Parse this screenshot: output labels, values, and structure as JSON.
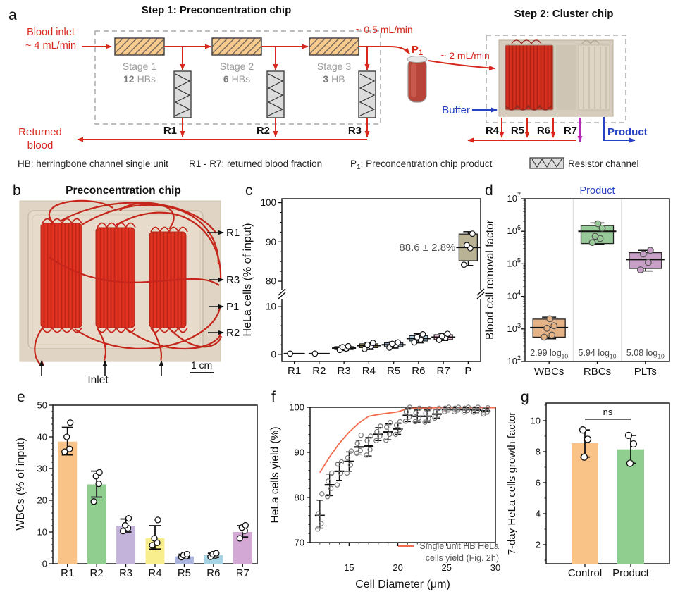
{
  "palette": {
    "red": "#d8281e",
    "blue": "#2743c4",
    "magenta": "#b52ab5",
    "dash_gray": "#a8a8a8",
    "hb_fill": "#f7ca8e",
    "resistor_fill": "#dcdcdc",
    "annotation_gray": "#555555"
  },
  "panel_a": {
    "label": "a",
    "step1_title": "Step 1: Preconcentration chip",
    "step2_title": "Step 2: Cluster chip",
    "blood_inlet": [
      "Blood inlet",
      "~ 4 mL/min"
    ],
    "flow_05": "~ 0.5 mL/min",
    "flow_2": "~ 2 mL/min",
    "p1": {
      "main": "P",
      "sub": "1"
    },
    "stages": [
      {
        "name": "Stage 1",
        "num": "12",
        "unit": "HBs"
      },
      {
        "name": "Stage 2",
        "num": "6",
        "unit": "HBs"
      },
      {
        "name": "Stage 3",
        "num": "3",
        "unit": "HB"
      }
    ],
    "returns1": [
      "R1",
      "R2",
      "R3"
    ],
    "returned_blood": [
      "Returned",
      "blood"
    ],
    "buffer": "Buffer",
    "returns2": [
      "R4",
      "R5",
      "R6",
      "R7"
    ],
    "product": "Product",
    "legend": {
      "hb": "HB: herringbone channel single unit",
      "r": "R1 - R7: returned blood fraction",
      "p1_pre": "P",
      "p1_sub": "1",
      "p1_rest": ": Preconcentration chip product",
      "resistor": "Resistor channel"
    }
  },
  "panel_b": {
    "label": "b",
    "title": "Preconcentration chip",
    "callouts": [
      "R1",
      "R3",
      "P1",
      "R2"
    ],
    "inlet": "Inlet",
    "scale": "1 cm"
  },
  "chart_data": [
    {
      "id": "c",
      "panel_label": "c",
      "type": "box",
      "ylabel": "HeLa cells (% of input)",
      "categories": [
        "R1",
        "R2",
        "R3",
        "R4",
        "R5",
        "R6",
        "R7",
        "P"
      ],
      "axis_break": true,
      "yticks_lower": [
        0,
        10
      ],
      "yticks_upper": [
        80,
        90,
        100
      ],
      "annotation": "88.6 ± 2.8%",
      "boxes": [
        {
          "cat": "R1",
          "med": 0.15,
          "q1": 0.1,
          "q3": 0.2,
          "lo": 0.1,
          "hi": 0.2,
          "points": [
            0.15
          ],
          "color": "#f9c287"
        },
        {
          "cat": "R2",
          "med": 0.15,
          "q1": 0.1,
          "q3": 0.2,
          "lo": 0.1,
          "hi": 0.2,
          "points": [
            0.15
          ],
          "color": "#8fce8f"
        },
        {
          "cat": "R3",
          "med": 1.3,
          "q1": 1.0,
          "q3": 1.6,
          "lo": 0.8,
          "hi": 1.9,
          "points": [
            0.9,
            1.2,
            1.5,
            1.7
          ],
          "color": "#c9c4cb"
        },
        {
          "cat": "R4",
          "med": 1.8,
          "q1": 1.4,
          "q3": 2.2,
          "lo": 1.0,
          "hi": 2.5,
          "points": [
            1.1,
            1.7,
            2.0,
            2.4
          ],
          "color": "#f9ee8e"
        },
        {
          "cat": "R5",
          "med": 2.0,
          "q1": 1.6,
          "q3": 2.4,
          "lo": 1.3,
          "hi": 2.6,
          "points": [
            1.4,
            1.9,
            2.2,
            2.5
          ],
          "color": "#afc3de"
        },
        {
          "cat": "R6",
          "med": 3.3,
          "q1": 2.8,
          "q3": 3.9,
          "lo": 2.4,
          "hi": 4.3,
          "points": [
            2.5,
            3.1,
            3.6,
            4.2
          ],
          "color": "#b5d9ea"
        },
        {
          "cat": "R7",
          "med": 3.6,
          "q1": 3.1,
          "q3": 4.1,
          "lo": 2.9,
          "hi": 4.4,
          "points": [
            3.0,
            3.5,
            3.8,
            4.3
          ],
          "color": "#efc0dc"
        },
        {
          "cat": "P",
          "med": 88.6,
          "q1": 85.2,
          "q3": 92.0,
          "lo": 84.0,
          "hi": 92.6,
          "points": [
            84.2,
            88.4,
            89.2,
            92.1
          ],
          "color": "#b9b295"
        }
      ]
    },
    {
      "id": "d",
      "panel_label": "d",
      "type": "box",
      "yscale": "log",
      "title": "Product",
      "title_color": "#2743c4",
      "ylabel": "Blood cell removal factor",
      "ylim": [
        100,
        10000000
      ],
      "categories": [
        "WBCs",
        "RBCs",
        "PLTs"
      ],
      "annotation_unit": "log",
      "annotation_sub": "10",
      "boxes": [
        {
          "cat": "WBCs",
          "med": 1100,
          "q1": 560,
          "q3": 2000,
          "lo": 500,
          "hi": 2300,
          "points": [
            560,
            650,
            1050,
            1250,
            2050
          ],
          "color": "#e5b285",
          "removal_log10": "2.99"
        },
        {
          "cat": "RBCs",
          "med": 1000000,
          "q1": 420000,
          "q3": 1500000,
          "lo": 400000,
          "hi": 1800000,
          "points": [
            450000,
            600000,
            700000,
            1250000,
            1700000
          ],
          "color": "#98c998",
          "removal_log10": "5.94"
        },
        {
          "cat": "PLTs",
          "med": 135000,
          "q1": 72000,
          "q3": 220000,
          "lo": 60000,
          "hi": 260000,
          "points": [
            65000,
            110000,
            200000,
            260000
          ],
          "color": "#c79fc7",
          "removal_log10": "5.08"
        }
      ]
    },
    {
      "id": "e",
      "panel_label": "e",
      "type": "bar",
      "ylabel": "WBCs (% of input)",
      "ylim": [
        0,
        50
      ],
      "yticks": [
        0,
        10,
        20,
        30,
        40,
        50
      ],
      "categories": [
        "R1",
        "R2",
        "R3",
        "R4",
        "R5",
        "R6",
        "R7"
      ],
      "values": [
        38.5,
        25,
        12,
        8,
        2.3,
        2.7,
        10
      ],
      "errors": [
        [
          34.3,
          43
        ],
        [
          21,
          29.2
        ],
        [
          10,
          14.1
        ],
        [
          4.6,
          12
        ],
        [
          1.8,
          3
        ],
        [
          2,
          3.3
        ],
        [
          8.4,
          12
        ]
      ],
      "points": [
        [
          35.3,
          36.2,
          40,
          44.5
        ],
        [
          19.6,
          25.2,
          27.6,
          28.8
        ],
        [
          10.3,
          11.2,
          12.1,
          14.3
        ],
        [
          5.8,
          6.6,
          8,
          13.8
        ],
        [
          2.1,
          2.4,
          2.7,
          3
        ],
        [
          2.2,
          2.6,
          3,
          3.3
        ],
        [
          8,
          10.4,
          11.4,
          12.1
        ]
      ],
      "colors": [
        "#f9c287",
        "#8fce8f",
        "#c3b2da",
        "#f9ee8e",
        "#a9b3dc",
        "#a8d5e6",
        "#d4a8d4"
      ]
    },
    {
      "id": "f",
      "panel_label": "f",
      "type": "scatter",
      "xlabel": "Cell Diameter (μm)",
      "ylabel": "HeLa cells yield (%)",
      "xlim": [
        11,
        30
      ],
      "ylim": [
        70,
        100
      ],
      "xticks": [
        15,
        20,
        25,
        30
      ],
      "yticks": [
        70,
        80,
        90,
        100
      ],
      "points": [
        {
          "x": 12,
          "mean": 76,
          "lo": 73.2,
          "hi": 79.4,
          "obs": [
            73,
            74.2,
            76.4,
            80.8
          ]
        },
        {
          "x": 13,
          "mean": 82.8,
          "lo": 80.4,
          "hi": 85.2,
          "obs": [
            80.2,
            82,
            83.6,
            85.4
          ]
        },
        {
          "x": 14,
          "mean": 85.8,
          "lo": 83.8,
          "hi": 87.8,
          "obs": [
            82.8,
            85.4,
            87.4,
            87.9
          ]
        },
        {
          "x": 15,
          "mean": 88,
          "lo": 85.8,
          "hi": 90.1,
          "obs": [
            85.4,
            87.2,
            88.8,
            90.3
          ]
        },
        {
          "x": 16,
          "mean": 91.2,
          "lo": 89.6,
          "hi": 92.7,
          "obs": [
            89.8,
            90.4,
            92,
            93.8
          ]
        },
        {
          "x": 17,
          "mean": 91.4,
          "lo": 89.2,
          "hi": 93.3,
          "obs": [
            89.4,
            90.6,
            92.6,
            93.6
          ]
        },
        {
          "x": 18,
          "mean": 94,
          "lo": 92.6,
          "hi": 95.5,
          "obs": [
            92.6,
            93.6,
            94.6,
            95.8
          ]
        },
        {
          "x": 19,
          "mean": 94.5,
          "lo": 92.8,
          "hi": 96.3,
          "obs": [
            92.7,
            94,
            95.6,
            96.6
          ]
        },
        {
          "x": 20,
          "mean": 95.2,
          "lo": 94,
          "hi": 96.5,
          "obs": [
            94,
            95,
            96,
            96.8
          ]
        },
        {
          "x": 21,
          "mean": 98.2,
          "lo": 96.8,
          "hi": 99.7,
          "obs": [
            96.9,
            97.8,
            99,
            100
          ]
        },
        {
          "x": 22,
          "mean": 98,
          "lo": 96.7,
          "hi": 99.4,
          "obs": [
            96.8,
            97.6,
            98.8,
            99.8
          ]
        },
        {
          "x": 23,
          "mean": 98,
          "lo": 96.7,
          "hi": 99.4,
          "obs": [
            96.7,
            97.5,
            98.6,
            99.7
          ]
        },
        {
          "x": 24,
          "mean": 98.5,
          "lo": 97.6,
          "hi": 99.5,
          "obs": [
            97.6,
            98.2,
            99,
            99.8
          ]
        },
        {
          "x": 25,
          "mean": 99.5,
          "lo": 99,
          "hi": 99.9,
          "obs": [
            99,
            99.4,
            99.8,
            100
          ]
        },
        {
          "x": 26,
          "mean": 99.5,
          "lo": 99,
          "hi": 99.9,
          "obs": [
            99,
            99.4,
            99.8,
            100
          ]
        },
        {
          "x": 27,
          "mean": 99.5,
          "lo": 98.9,
          "hi": 99.9,
          "obs": [
            98.9,
            99.3,
            99.8,
            100
          ]
        },
        {
          "x": 28,
          "mean": 99.4,
          "lo": 98.8,
          "hi": 99.9,
          "obs": [
            98.9,
            99.3,
            99.7,
            100
          ]
        },
        {
          "x": 29,
          "mean": 99.2,
          "lo": 98.5,
          "hi": 99.8,
          "obs": [
            98.5,
            99,
            99.4,
            99.9
          ]
        }
      ],
      "line": {
        "label_lines": [
          "Single unit HB HeLa",
          "cells yield (Fig. 2h)"
        ],
        "color": "#f26b4e",
        "x": [
          12,
          13,
          14,
          15,
          16,
          17,
          18,
          19,
          20,
          21,
          22,
          23,
          24,
          25,
          26,
          27,
          28,
          29,
          30
        ],
        "y": [
          85.5,
          89,
          92,
          94.5,
          96.5,
          98,
          98.4,
          98.7,
          99,
          99.7,
          99.8,
          99.8,
          99.9,
          99.9,
          99.9,
          99.9,
          99.9,
          99.9,
          99.9
        ]
      }
    },
    {
      "id": "g",
      "panel_label": "g",
      "type": "bar",
      "ylabel": "7-day HeLa cells growth factor",
      "ylim": [
        0.8,
        11.2
      ],
      "yticks": [
        2,
        4,
        6,
        8,
        10
      ],
      "categories": [
        "Control",
        "Product"
      ],
      "values": [
        8.55,
        8.15
      ],
      "errors": [
        [
          7.65,
          9.4
        ],
        [
          7.25,
          9.05
        ]
      ],
      "points": [
        [
          7.65,
          8.8,
          9.4
        ],
        [
          7.25,
          8.5,
          9.05
        ]
      ],
      "colors": [
        "#f9c287",
        "#8fce8f"
      ],
      "sig": "ns"
    }
  ]
}
